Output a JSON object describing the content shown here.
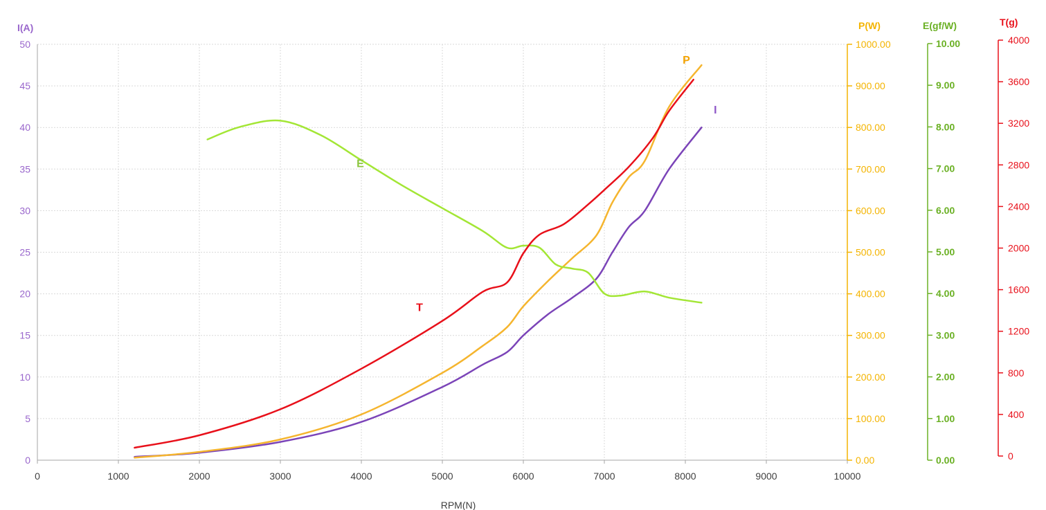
{
  "chart_data": {
    "type": "line",
    "xlabel": "RPM(N)",
    "xlim": [
      0,
      10000
    ],
    "xticks": [
      0,
      1000,
      2000,
      3000,
      4000,
      5000,
      6000,
      7000,
      8000,
      9000,
      10000
    ],
    "grid": true,
    "axes": {
      "I": {
        "title": "I(A)",
        "range": [
          0,
          50
        ],
        "ticks": [
          "0",
          "5",
          "10",
          "15",
          "20",
          "25",
          "30",
          "35",
          "40",
          "45",
          "50"
        ],
        "color": "#9966CC"
      },
      "P": {
        "title": "P(W)",
        "range": [
          0,
          1000
        ],
        "ticks": [
          "0.00",
          "100.00",
          "200.00",
          "300.00",
          "400.00",
          "500.00",
          "600.00",
          "700.00",
          "800.00",
          "900.00",
          "1000.00"
        ],
        "color": "#F4B400"
      },
      "E": {
        "title": "E(gf/W)",
        "range": [
          0,
          10
        ],
        "ticks": [
          "0.00",
          "1.00",
          "2.00",
          "3.00",
          "4.00",
          "5.00",
          "6.00",
          "7.00",
          "8.00",
          "9.00",
          "10.00"
        ],
        "color": "#6AB023"
      },
      "T": {
        "title": "T(g)",
        "range": [
          0,
          4000
        ],
        "ticks": [
          "0",
          "400",
          "800",
          "1200",
          "1600",
          "2000",
          "2400",
          "2800",
          "3200",
          "3600",
          "4000"
        ],
        "color": "#E8101A"
      }
    },
    "series": [
      {
        "name": "I",
        "axis": "I",
        "color": "#7B44B8",
        "x": [
          1200,
          2000,
          3000,
          4000,
          5000,
          5500,
          5800,
          6000,
          6300,
          6600,
          6900,
          7100,
          7300,
          7500,
          7800,
          8200
        ],
        "y": [
          0.4,
          0.9,
          2.2,
          4.6,
          8.8,
          11.5,
          13,
          15,
          17.5,
          19.5,
          21.8,
          25,
          28,
          30,
          35,
          40
        ]
      },
      {
        "name": "P",
        "axis": "P",
        "color": "#F5B52E",
        "x": [
          1200,
          2000,
          3000,
          4000,
          5000,
          5500,
          5800,
          6000,
          6300,
          6600,
          6900,
          7100,
          7300,
          7500,
          7800,
          8200
        ],
        "y": [
          6,
          20,
          50,
          110,
          210,
          275,
          320,
          370,
          430,
          485,
          540,
          620,
          680,
          720,
          850,
          950
        ]
      },
      {
        "name": "E",
        "axis": "E",
        "color": "#A3E635",
        "x": [
          2100,
          2500,
          3000,
          3500,
          4000,
          4500,
          5000,
          5500,
          5800,
          6000,
          6200,
          6400,
          6600,
          6800,
          7000,
          7200,
          7500,
          7800,
          8200
        ],
        "y": [
          7.7,
          8,
          8.15,
          7.8,
          7.2,
          6.6,
          6.05,
          5.5,
          5.1,
          5.15,
          5.1,
          4.7,
          4.6,
          4.5,
          4.0,
          3.95,
          4.05,
          3.9,
          3.78
        ]
      },
      {
        "name": "T",
        "axis": "T",
        "color": "#E8101A",
        "x": [
          1200,
          2000,
          3000,
          4000,
          5000,
          5500,
          5800,
          6000,
          6200,
          6500,
          6800,
          7000,
          7300,
          7600,
          7800,
          8100
        ],
        "y": [
          80,
          200,
          450,
          840,
          1300,
          1580,
          1670,
          1950,
          2130,
          2230,
          2420,
          2560,
          2780,
          3060,
          3320,
          3620
        ]
      }
    ],
    "annotations": [
      {
        "text": "P",
        "series": "P"
      },
      {
        "text": "E",
        "series": "E"
      },
      {
        "text": "I",
        "series": "I"
      },
      {
        "text": "T",
        "series": "T"
      }
    ]
  }
}
